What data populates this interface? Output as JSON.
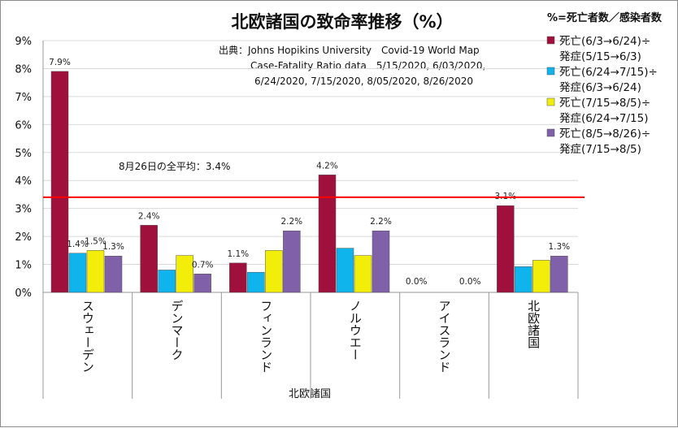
{
  "chart_data": {
    "type": "bar",
    "title": "北欧諸国の致命率推移（%）",
    "source_lines": [
      "出典：Johns Hopikins University　Covid-19 World Map",
      "Case-Fatality Ratio data　5/15/2020, 6/03/2020,",
      "6/24/2020, 7/15/2020, 8/05/2020, 8/26/2020"
    ],
    "xlabel": "北欧諸国",
    "ylabel": "",
    "ylim": [
      0,
      9
    ],
    "yticks": [
      "0%",
      "1%",
      "2%",
      "3%",
      "4%",
      "5%",
      "6%",
      "7%",
      "8%",
      "9%"
    ],
    "categories": [
      "スウェーデン",
      "デンマーク",
      "フィンランド",
      "ノルウエー",
      "アイスランド",
      "北欧諸国"
    ],
    "legend_title": "%=死亡者数／感染者数",
    "legend_position": "right",
    "series": [
      {
        "name_lines": [
          "死亡(6/3→6/24)÷",
          "発症(5/15→6/3)"
        ],
        "color": "#a0103c",
        "values": [
          7.9,
          2.4,
          1.05,
          4.2,
          0.0,
          3.1
        ],
        "labels": [
          "7.9%",
          "2.4%",
          "1.1%",
          "4.2%",
          "0.0%",
          "3.1%"
        ]
      },
      {
        "name_lines": [
          "死亡(6/24→7/15)÷",
          "発症(6/3→6/24)"
        ],
        "color": "#10b4ec",
        "values": [
          1.4,
          0.8,
          0.72,
          1.58,
          0.0,
          0.92
        ],
        "labels": [
          "1.4%",
          "",
          "",
          "",
          "",
          ""
        ]
      },
      {
        "name_lines": [
          "死亡(7/15→8/5)÷",
          "発症(6/24→7/15)"
        ],
        "color": "#f2ee0a",
        "values": [
          1.5,
          1.32,
          1.5,
          1.32,
          0.0,
          1.15
        ],
        "labels": [
          "1.5%",
          "",
          "",
          "",
          "",
          ""
        ]
      },
      {
        "name_lines": [
          "死亡(8/5→8/26)÷",
          "発症(7/15→8/5)"
        ],
        "color": "#8060a8",
        "values": [
          1.3,
          0.66,
          2.2,
          2.2,
          0.0,
          1.3
        ],
        "labels": [
          "1.3%",
          "0.7%",
          "2.2%",
          "2.2%",
          "0.0%",
          "1.3%"
        ]
      }
    ],
    "average_line": {
      "value": 3.4,
      "label": "8月26日の全平均：3.4%",
      "color": "#ff0000"
    },
    "grid": true
  }
}
